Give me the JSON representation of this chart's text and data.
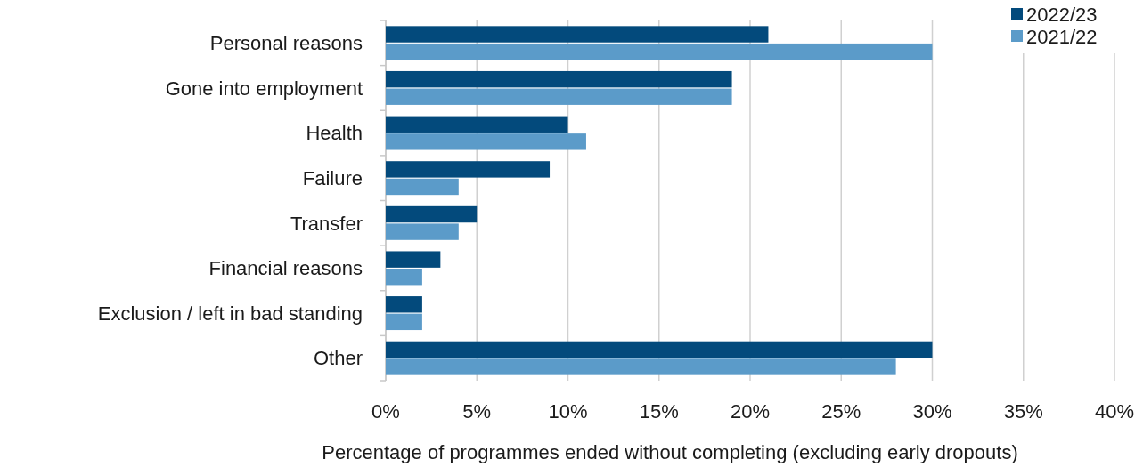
{
  "chart_data": {
    "type": "bar",
    "orientation": "horizontal",
    "categories": [
      "Personal reasons",
      "Gone into employment",
      "Health",
      "Failure",
      "Transfer",
      "Financial reasons",
      "Exclusion / left in bad standing",
      "Other"
    ],
    "series": [
      {
        "name": "2022/23",
        "color": "#034a7c",
        "values": [
          21,
          19,
          10,
          9,
          5,
          3,
          2,
          30
        ]
      },
      {
        "name": "2021/22",
        "color": "#5b9bc9",
        "values": [
          30,
          19,
          11,
          4,
          4,
          2,
          2,
          28
        ]
      }
    ],
    "xlabel": "Percentage of programmes ended without completing (excluding early dropouts)",
    "xlim": [
      0,
      40
    ],
    "xticks": [
      {
        "value": 0,
        "label": "0%"
      },
      {
        "value": 5,
        "label": "5%"
      },
      {
        "value": 10,
        "label": "10%"
      },
      {
        "value": 15,
        "label": "15%"
      },
      {
        "value": 20,
        "label": "20%"
      },
      {
        "value": 25,
        "label": "25%"
      },
      {
        "value": 30,
        "label": "30%"
      },
      {
        "value": 35,
        "label": "35%"
      },
      {
        "value": 40,
        "label": "40%"
      }
    ],
    "grid": "x",
    "legend": "top right"
  }
}
